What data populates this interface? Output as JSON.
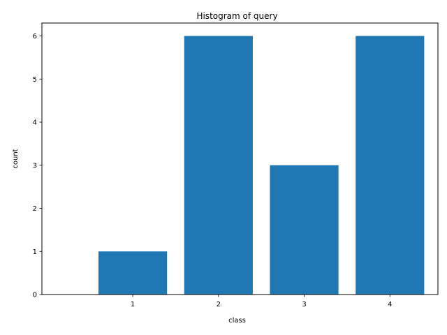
{
  "chart_data": {
    "type": "bar",
    "title": "Histogram of query",
    "xlabel": "class",
    "ylabel": "count",
    "categories": [
      "1",
      "2",
      "3",
      "4"
    ],
    "values": [
      1,
      6,
      3,
      6
    ],
    "ylim": [
      0,
      6.3
    ],
    "yticks": [
      0,
      1,
      2,
      3,
      4,
      5,
      6
    ],
    "grid": false,
    "legend": "none",
    "bar_color": "#1f77b4"
  }
}
